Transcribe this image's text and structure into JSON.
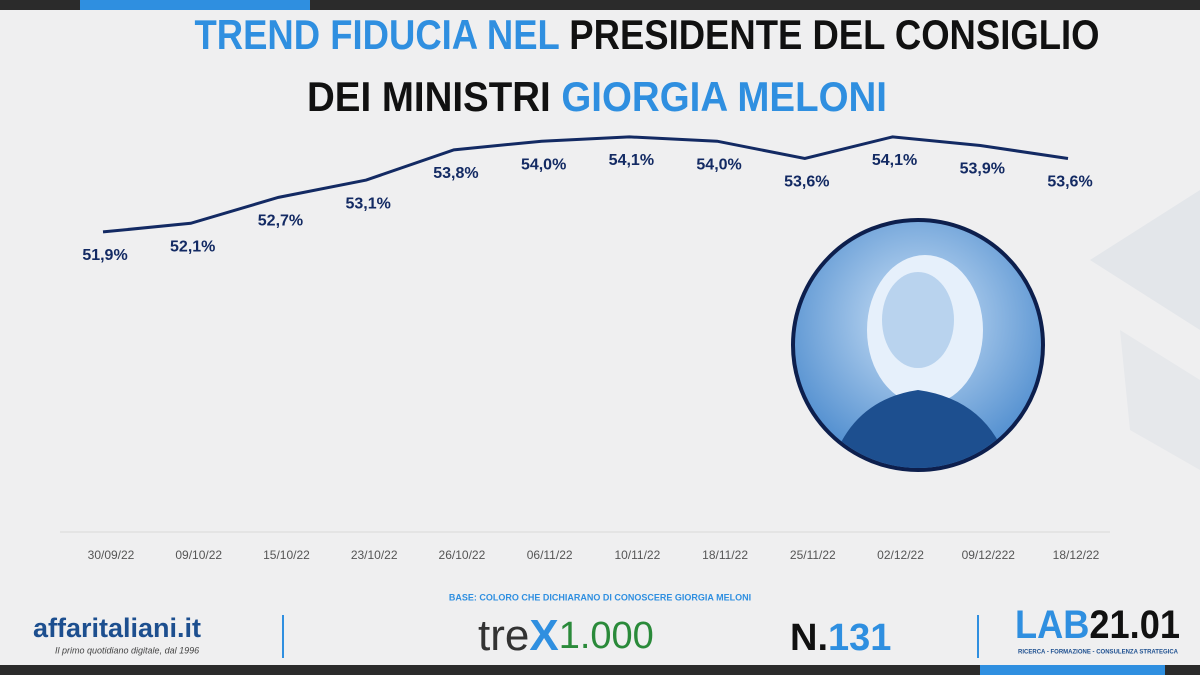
{
  "chart_data": {
    "type": "line",
    "title_lines": [
      [
        {
          "text": "TREND FIDUCIA NEL",
          "color": "#2f8fe0"
        },
        {
          "text": "PRESIDENTE DEL CONSIGLIO",
          "color": "#111111"
        }
      ],
      [
        {
          "text": "DEI MINISTRI",
          "color": "#111111"
        },
        {
          "text": "GIORGIA MELONI",
          "color": "#2f8fe0"
        }
      ]
    ],
    "categories": [
      "30/09/22",
      "09/10/22",
      "15/10/22",
      "23/10/22",
      "26/10/22",
      "06/11/22",
      "10/11/22",
      "18/11/22",
      "25/11/22",
      "02/12/22",
      "09/12/222",
      "18/12/22"
    ],
    "values": [
      51.9,
      52.1,
      52.7,
      53.1,
      53.8,
      54.0,
      54.1,
      54.0,
      53.6,
      54.1,
      53.9,
      53.6
    ],
    "value_labels": [
      "51,9%",
      "52,1%",
      "52,7%",
      "53,1%",
      "53,8%",
      "54,0%",
      "54,1%",
      "54,0%",
      "53,6%",
      "54,1%",
      "53,9%",
      "53,6%"
    ],
    "color": "#132a63",
    "ylim": [
      45,
      55
    ]
  },
  "footer": {
    "base": "BASE: COLORO CHE DICHIARANO DI CONOSCERE GIORGIA MELONI",
    "brand": "affaritaliani.it",
    "tagline": "Il primo quotidiano digitale, dal 1996",
    "trex_a": "tre",
    "trex_b": "X",
    "trex_c": "1.000",
    "number_a": "N.",
    "number_b": "131",
    "lab_a": "LAB",
    "lab_b": "21.01",
    "lab_sub": "RICERCA - FORMAZIONE - CONSULENZA STRATEGICA"
  }
}
